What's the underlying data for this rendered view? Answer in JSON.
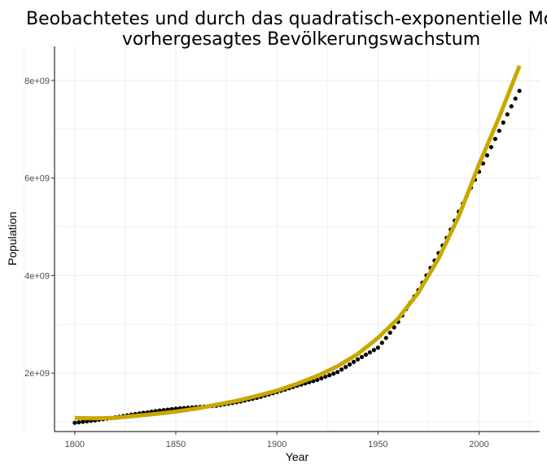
{
  "chart_data": {
    "type": "scatter",
    "title_line1": "Beobachtetes und durch das quadratisch-exponentielle Modell",
    "title_line2": "vorhergesagtes Bevölkerungswachstum",
    "xlabel": "Year",
    "ylabel": "Population",
    "xlim": [
      1790,
      2030
    ],
    "ylim": [
      800000000,
      8700000000
    ],
    "x_ticks": [
      1800,
      1850,
      1900,
      1950,
      2000
    ],
    "x_tick_labels": [
      "1800",
      "1850",
      "1900",
      "1950",
      "2000"
    ],
    "y_ticks": [
      2000000000,
      4000000000,
      6000000000,
      8000000000
    ],
    "y_tick_labels": [
      "2e+09",
      "4e+09",
      "6e+09",
      "8e+09"
    ],
    "grid": true,
    "colors": {
      "observed": "#000000",
      "model": "#c8a800",
      "grid": "#ebebeb",
      "axis": "#000000"
    },
    "series": [
      {
        "kind": "points",
        "x_range": [
          1800,
          2020
        ],
        "x_step": 2,
        "anchors_x": [
          1800,
          1810,
          1820,
          1830,
          1840,
          1850,
          1860,
          1870,
          1880,
          1890,
          1900,
          1910,
          1920,
          1930,
          1940,
          1950,
          1955,
          1960,
          1965,
          1970,
          1975,
          1980,
          1985,
          1990,
          1995,
          2000,
          2005,
          2010,
          2015,
          2020
        ],
        "anchors_y": [
          980000000,
          1030000000,
          1090000000,
          1160000000,
          1220000000,
          1270000000,
          1300000000,
          1330000000,
          1400000000,
          1490000000,
          1610000000,
          1740000000,
          1860000000,
          2020000000,
          2280000000,
          2520000000,
          2770000000,
          3050000000,
          3380000000,
          3700000000,
          4080000000,
          4460000000,
          4850000000,
          5310000000,
          5720000000,
          6130000000,
          6550000000,
          6970000000,
          7390000000,
          7790000000
        ]
      },
      {
        "kind": "line",
        "x": [
          1800,
          1810,
          1820,
          1830,
          1840,
          1850,
          1860,
          1870,
          1880,
          1890,
          1900,
          1910,
          1920,
          1930,
          1940,
          1950,
          1960,
          1970,
          1980,
          1990,
          2000,
          2010,
          2020
        ],
        "y": [
          1080000000,
          1070000000,
          1080000000,
          1120000000,
          1160000000,
          1210000000,
          1270000000,
          1350000000,
          1430000000,
          1530000000,
          1640000000,
          1780000000,
          1940000000,
          2140000000,
          2390000000,
          2720000000,
          3120000000,
          3650000000,
          4350000000,
          5220000000,
          6280000000,
          7250000000,
          8300000000
        ]
      }
    ]
  }
}
